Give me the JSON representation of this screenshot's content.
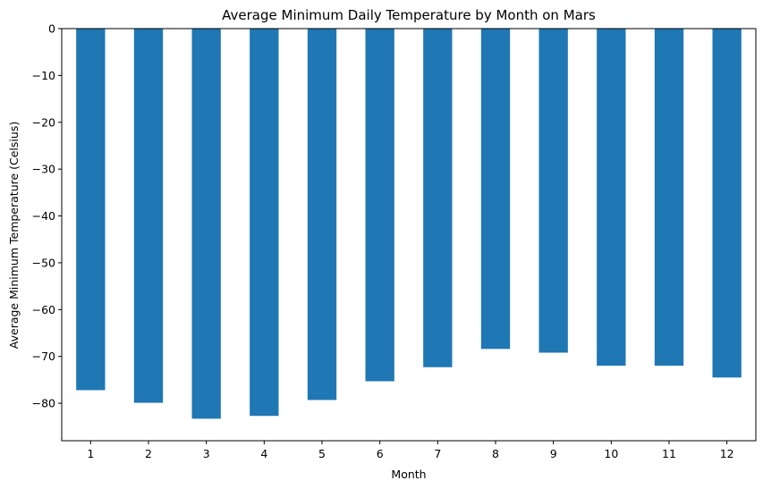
{
  "chart_data": {
    "type": "bar",
    "title": "Average Minimum Daily Temperature by Month on Mars",
    "xlabel": "Month",
    "ylabel": "Average Minimum Temperature (Celsius)",
    "categories": [
      "1",
      "2",
      "3",
      "4",
      "5",
      "6",
      "7",
      "8",
      "9",
      "10",
      "11",
      "12"
    ],
    "values": [
      -77.2,
      -79.9,
      -83.3,
      -82.7,
      -79.3,
      -75.3,
      -72.3,
      -68.4,
      -69.2,
      -71.98,
      -71.99,
      -74.5
    ],
    "ylim": [
      -88,
      0
    ],
    "yticks": [
      0,
      -10,
      -20,
      -30,
      -40,
      -50,
      -60,
      -70,
      -80
    ],
    "ytick_labels": [
      "0",
      "−10",
      "−20",
      "−30",
      "−40",
      "−50",
      "−60",
      "−70",
      "−80"
    ],
    "grid": false,
    "legend": "none",
    "bar_color": "#1f77b4"
  }
}
